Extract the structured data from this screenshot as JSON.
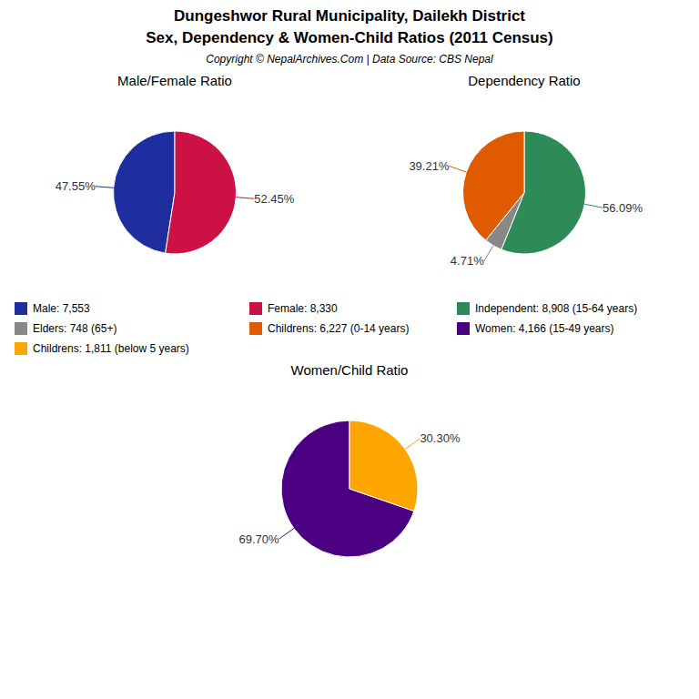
{
  "title": "Dungeshwor Rural Municipality, Dailekh District",
  "subtitle": "Sex, Dependency & Women-Child Ratios (2011 Census)",
  "annotations": [
    "Copyright © NepalArchives.Com | Data Source: CBS Nepal"
  ],
  "chart_data": [
    {
      "type": "pie",
      "title": "Male/Female Ratio",
      "categories": [
        "Male: 7,553",
        "Female: 8,330"
      ],
      "values": [
        47.55,
        52.45
      ],
      "value_labels": [
        "47.55%",
        "52.45%"
      ],
      "colors": [
        "#1f2e9e",
        "#cc1144"
      ],
      "data_labels": true
    },
    {
      "type": "pie",
      "title": "Dependency Ratio",
      "categories": [
        "Independent: 8,908 (15-64 years)",
        "Elders: 748 (65+)",
        "Childrens: 6,227 (0-14 years)"
      ],
      "values": [
        56.09,
        4.71,
        39.21
      ],
      "value_labels": [
        "56.09%",
        "4.71%",
        "39.21%"
      ],
      "colors": [
        "#2e8b57",
        "#888888",
        "#e05a00"
      ],
      "data_labels": true
    },
    {
      "type": "pie",
      "title": "Women/Child Ratio",
      "categories": [
        "Women: 4,166 (15-49 years)",
        "Childrens: 1,811 (below 5 years)"
      ],
      "values": [
        69.7,
        30.3
      ],
      "value_labels": [
        "69.70%",
        "30.30%"
      ],
      "colors": [
        "#4b0082",
        "#ffa500"
      ],
      "data_labels": true
    }
  ]
}
